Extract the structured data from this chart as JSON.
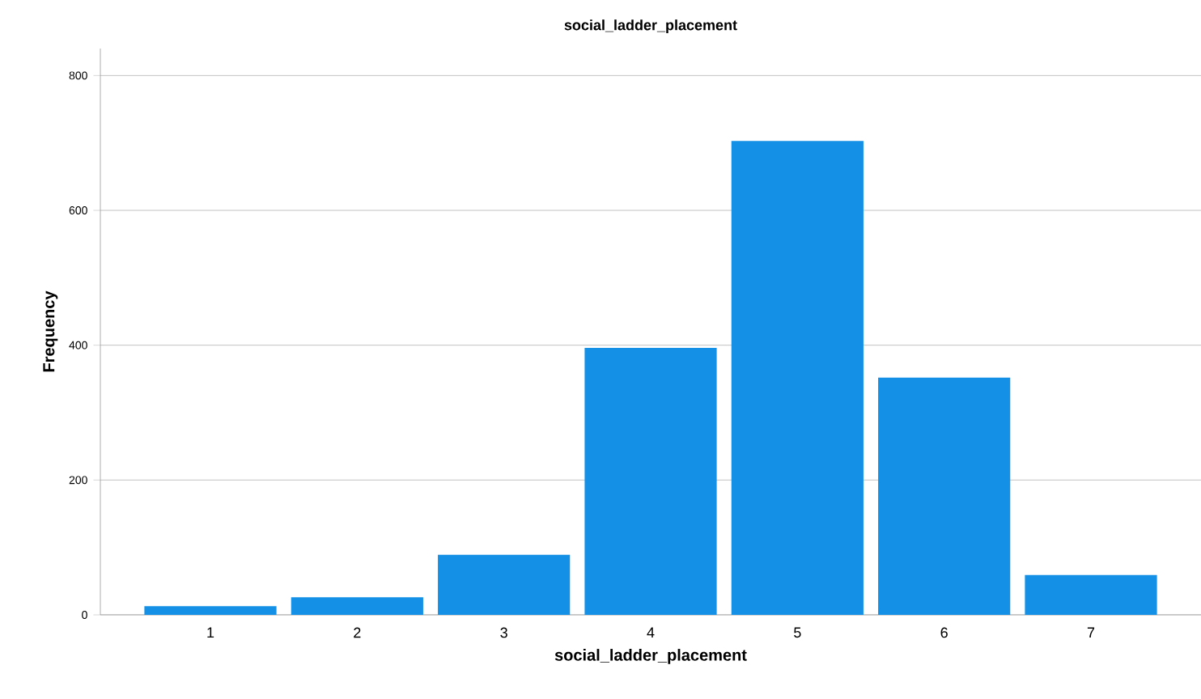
{
  "chart_data": {
    "type": "bar",
    "title": "social_ladder_placement",
    "xlabel": "social_ladder_placement",
    "ylabel": "Frequency",
    "categories": [
      "1",
      "2",
      "3",
      "4",
      "5",
      "6",
      "7"
    ],
    "values": [
      13,
      26,
      89,
      396,
      703,
      352,
      59
    ],
    "color": "#1490e6",
    "ylim": [
      0,
      840
    ],
    "yticks": [
      0,
      200,
      400,
      600,
      800
    ],
    "grid": "y"
  }
}
